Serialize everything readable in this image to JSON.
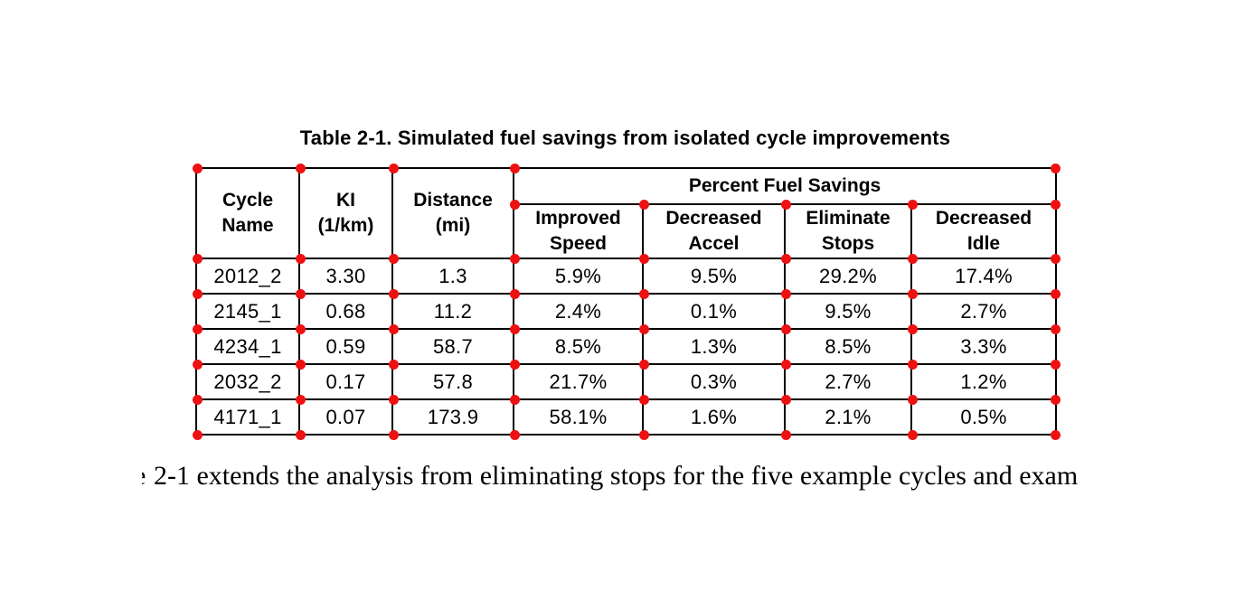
{
  "page": {
    "title": "Table 2-1. Simulated fuel savings from isolated cycle improvements"
  },
  "table": {
    "marker_color": "#ee1111",
    "header": {
      "cycle_name": "Cycle\nName",
      "ki": "KI\n(1/km)",
      "distance": "Distance\n(mi)",
      "group": "Percent Fuel Savings",
      "improved_speed": "Improved\nSpeed",
      "decreased_accel": "Decreased\nAccel",
      "eliminate_stops": "Eliminate\nStops",
      "decreased_idle": "Decreased\nIdle"
    },
    "rows": [
      {
        "cycle_name": "2012_2",
        "ki": "3.30",
        "distance": "1.3",
        "improved_speed": "5.9%",
        "decreased_accel": "9.5%",
        "eliminate_stops": "29.2%",
        "decreased_idle": "17.4%"
      },
      {
        "cycle_name": "2145_1",
        "ki": "0.68",
        "distance": "11.2",
        "improved_speed": "2.4%",
        "decreased_accel": "0.1%",
        "eliminate_stops": "9.5%",
        "decreased_idle": "2.7%"
      },
      {
        "cycle_name": "4234_1",
        "ki": "0.59",
        "distance": "58.7",
        "improved_speed": "8.5%",
        "decreased_accel": "1.3%",
        "eliminate_stops": "8.5%",
        "decreased_idle": "3.3%"
      },
      {
        "cycle_name": "2032_2",
        "ki": "0.17",
        "distance": "57.8",
        "improved_speed": "21.7%",
        "decreased_accel": "0.3%",
        "eliminate_stops": "2.7%",
        "decreased_idle": "1.2%"
      },
      {
        "cycle_name": "4171_1",
        "ki": "0.07",
        "distance": "173.9",
        "improved_speed": "58.1%",
        "decreased_accel": "1.6%",
        "eliminate_stops": "2.1%",
        "decreased_idle": "0.5%"
      }
    ]
  },
  "body_text": {
    "prefix_fragment": "e",
    "text": "2-1 extends the analysis from eliminating stops for the five example cycles and exam"
  }
}
